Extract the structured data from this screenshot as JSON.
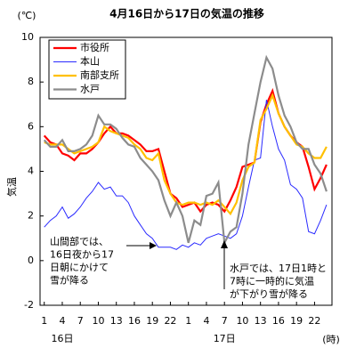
{
  "chart_data": {
    "type": "line",
    "title": "4月16日から17日の気温の推移",
    "y_unit": "(℃)",
    "ylabel": "気温",
    "x_unit": "(時)",
    "day_labels": [
      {
        "value": 4,
        "label": "16日"
      },
      {
        "value": 31,
        "label": "17日"
      }
    ],
    "x": [
      1,
      2,
      3,
      4,
      5,
      6,
      7,
      8,
      9,
      10,
      11,
      12,
      13,
      14,
      15,
      16,
      17,
      18,
      19,
      20,
      21,
      22,
      23,
      24,
      25,
      26,
      27,
      28,
      29,
      30,
      31,
      32,
      33,
      34,
      35,
      36,
      37,
      38,
      39,
      40,
      41,
      42,
      43,
      44,
      45,
      46,
      47,
      48
    ],
    "xlim": [
      0.3,
      48.9
    ],
    "xticks": [
      1,
      4,
      7,
      10,
      13,
      16,
      19,
      22,
      {
        "value": 25,
        "label": "1"
      },
      {
        "value": 28,
        "label": "4"
      },
      {
        "value": 31,
        "label": "7"
      },
      {
        "value": 34,
        "label": "10"
      },
      {
        "value": 37,
        "label": "13"
      },
      {
        "value": 40,
        "label": "16"
      },
      {
        "value": 43,
        "label": "19"
      },
      {
        "value": 46,
        "label": "22"
      }
    ],
    "ylim": [
      -2,
      10
    ],
    "yticks": [
      -2,
      0,
      2,
      4,
      6,
      8,
      10
    ],
    "grid": false,
    "series": [
      {
        "name": "市役所",
        "color": "#ff0000",
        "values": [
          5.6,
          5.3,
          5.2,
          4.8,
          4.7,
          4.5,
          4.8,
          4.8,
          5.0,
          5.3,
          5.7,
          6.0,
          5.7,
          5.7,
          5.6,
          5.4,
          5.2,
          4.9,
          4.9,
          5.0,
          4.0,
          3.0,
          2.8,
          2.4,
          2.5,
          2.6,
          2.2,
          2.5,
          2.6,
          2.5,
          2.2,
          2.7,
          3.3,
          4.2,
          4.3,
          4.4,
          6.2,
          7.0,
          7.6,
          6.6,
          6.0,
          5.6,
          5.3,
          5.1,
          4.2,
          3.2,
          3.7,
          4.3
        ]
      },
      {
        "name": "本山",
        "color": "#2a2aff",
        "values": [
          1.5,
          1.8,
          2.0,
          2.4,
          1.9,
          2.1,
          2.4,
          2.8,
          3.1,
          3.5,
          3.2,
          3.3,
          2.9,
          2.9,
          2.6,
          2.0,
          1.6,
          1.2,
          1.0,
          0.6,
          0.6,
          0.6,
          0.5,
          0.7,
          0.6,
          0.8,
          0.7,
          1.0,
          1.1,
          1.2,
          1.1,
          1.0,
          1.2,
          2.0,
          3.3,
          4.5,
          4.6,
          7.2,
          6.0,
          5.0,
          4.5,
          3.4,
          3.2,
          2.8,
          1.3,
          1.2,
          1.8,
          2.5
        ]
      },
      {
        "name": "南部支所",
        "color": "#ffc000",
        "values": [
          5.3,
          5.2,
          5.2,
          5.2,
          5.0,
          4.8,
          4.9,
          5.0,
          5.1,
          5.3,
          6.0,
          5.8,
          5.7,
          5.6,
          5.5,
          5.2,
          5.0,
          4.6,
          4.5,
          4.8,
          3.6,
          3.0,
          2.6,
          2.5,
          2.6,
          2.6,
          2.5,
          2.6,
          2.5,
          2.7,
          2.4,
          2.1,
          2.6,
          3.6,
          4.2,
          4.4,
          6.3,
          6.8,
          7.4,
          6.6,
          6.0,
          5.6,
          5.2,
          5.1,
          4.8,
          4.6,
          4.6,
          5.1
        ]
      },
      {
        "name": "水戸",
        "color": "#8c8c8c",
        "values": [
          5.4,
          5.1,
          5.1,
          5.4,
          4.9,
          4.9,
          5.0,
          5.2,
          5.6,
          6.5,
          6.1,
          6.1,
          5.9,
          5.5,
          5.2,
          5.1,
          4.6,
          4.3,
          4.0,
          3.6,
          2.7,
          2.0,
          2.6,
          2.0,
          0.8,
          1.8,
          1.6,
          2.9,
          3.0,
          3.5,
          0.8,
          1.3,
          1.5,
          3.0,
          5.2,
          6.6,
          8.0,
          9.1,
          8.6,
          7.4,
          6.5,
          6.0,
          5.3,
          5.0,
          5.0,
          4.3,
          3.9,
          3.1
        ]
      }
    ],
    "annotations": [
      {
        "lines": [
          "山間部では、",
          "16日夜から17",
          "日朝にかけて",
          "雪が降る"
        ]
      },
      {
        "lines": [
          "水戸では、17日1時と",
          "7時に一時的に気温",
          "が下がり雪が降る"
        ]
      }
    ]
  }
}
